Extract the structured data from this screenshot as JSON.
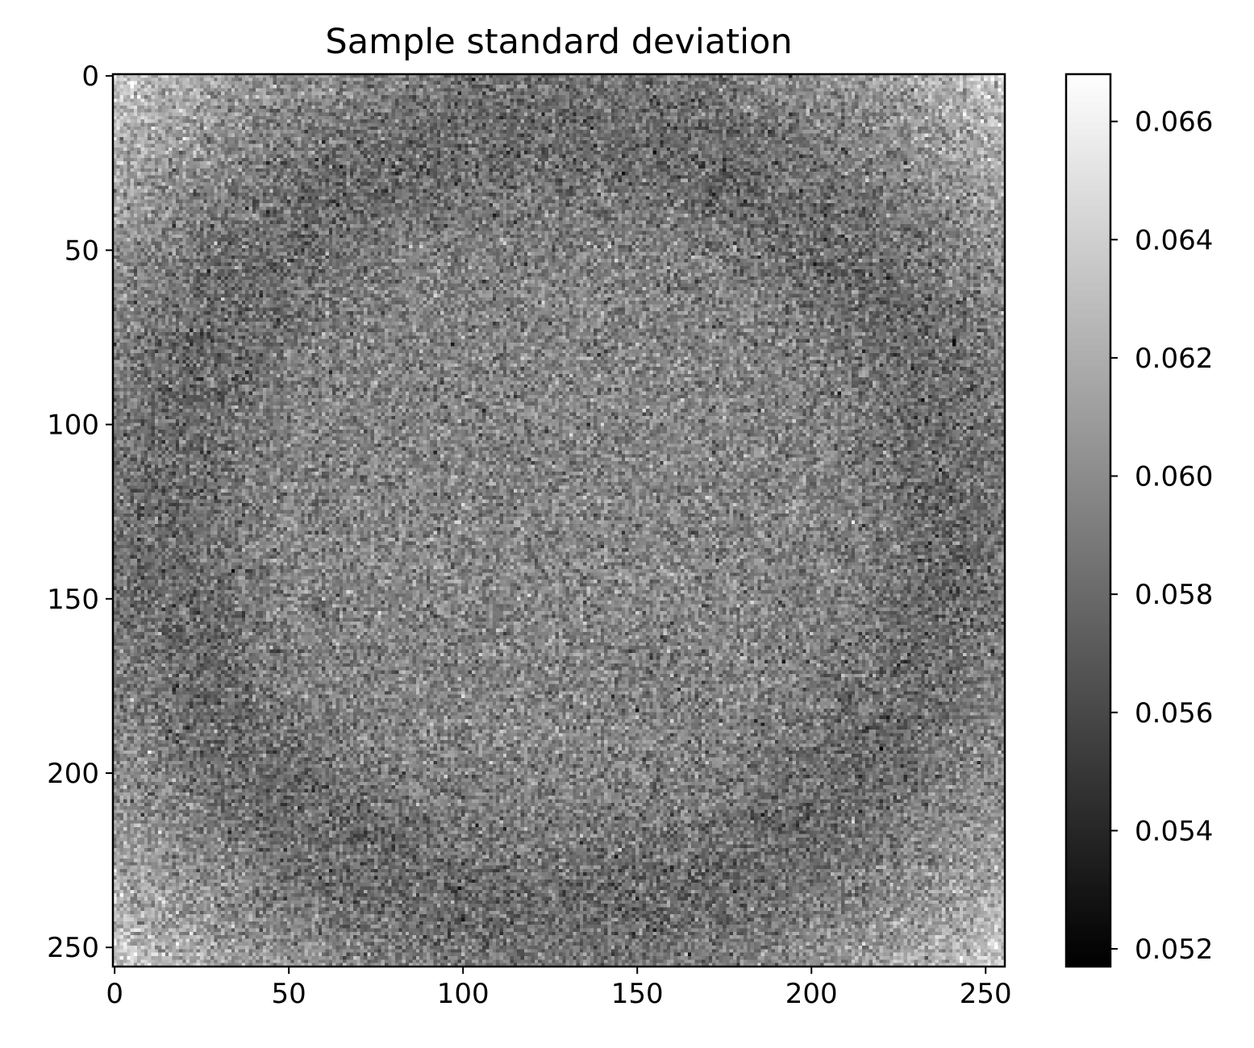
{
  "chart_data": {
    "type": "heatmap",
    "title": "Sample standard deviation",
    "xlabel": "",
    "ylabel": "",
    "grid": false,
    "colormap": "gray",
    "rows": 256,
    "cols": 256,
    "xlim": [
      -0.5,
      255.5
    ],
    "ylim": [
      255.5,
      -0.5
    ],
    "x_ticks": [
      0,
      50,
      100,
      150,
      200,
      250
    ],
    "y_ticks": [
      0,
      50,
      100,
      150,
      200,
      250
    ],
    "x_tick_labels": [
      "0",
      "50",
      "100",
      "150",
      "200",
      "250"
    ],
    "y_tick_labels": [
      "0",
      "50",
      "100",
      "150",
      "200",
      "250"
    ],
    "value_range": [
      0.0517,
      0.0668
    ],
    "field_model": {
      "center_value": 0.0595,
      "corner_value": 0.0623,
      "ring_min_value": 0.058,
      "noise_std": 0.0016
    },
    "colorbar": {
      "ticks": [
        0.052,
        0.054,
        0.056,
        0.058,
        0.06,
        0.062,
        0.064,
        0.066
      ],
      "tick_labels": [
        "0.052",
        "0.054",
        "0.056",
        "0.058",
        "0.060",
        "0.062",
        "0.064",
        "0.066"
      ],
      "vmin": 0.0517,
      "vmax": 0.0668,
      "colors": [
        "#000000",
        "#ffffff"
      ]
    }
  }
}
